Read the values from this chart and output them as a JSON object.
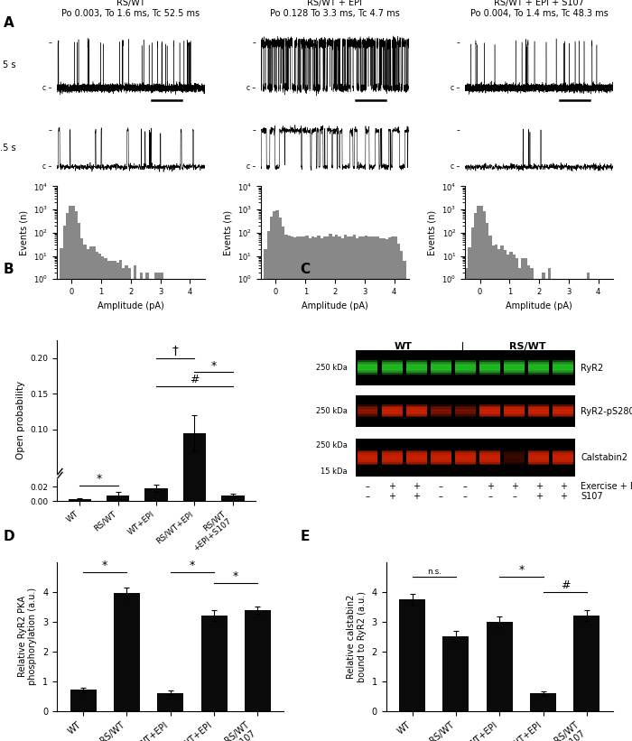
{
  "panel_A_titles": [
    "RS/WT",
    "RS/WT + EPI",
    "RS/WT + EPI + S107"
  ],
  "panel_A_subtitles": [
    "Po 0.003, To 1.6 ms, Tc 52.5 ms",
    "Po 0.128 To 3.3 ms, Tc 4.7 ms",
    "Po 0.004, To 1.4 ms, Tc 48.3 ms"
  ],
  "panel_B_categories": [
    "WT",
    "RS/WT",
    "WT+EPI",
    "RS/WT+EPI",
    "RS/WT+EPI+S107"
  ],
  "panel_B_values": [
    0.003,
    0.008,
    0.018,
    0.095,
    0.008
  ],
  "panel_B_errors": [
    0.001,
    0.005,
    0.005,
    0.025,
    0.002
  ],
  "panel_B_ylabel": "Open probability",
  "panel_D_values": [
    0.72,
    3.95,
    0.62,
    3.2,
    3.4
  ],
  "panel_D_errors": [
    0.08,
    0.18,
    0.08,
    0.18,
    0.12
  ],
  "panel_D_ylabel": "Relative RyR2 PKA\nphosphorylation (a.u.)",
  "panel_E_values": [
    3.75,
    2.5,
    3.0,
    0.6,
    3.2
  ],
  "panel_E_errors": [
    0.18,
    0.18,
    0.18,
    0.08,
    0.18
  ],
  "panel_E_ylabel": "Relative calstabin2\nbound to RyR2 (a.u.)",
  "bar_color": "#0a0a0a",
  "hist_color": "#888888",
  "background_color": "#ffffff"
}
